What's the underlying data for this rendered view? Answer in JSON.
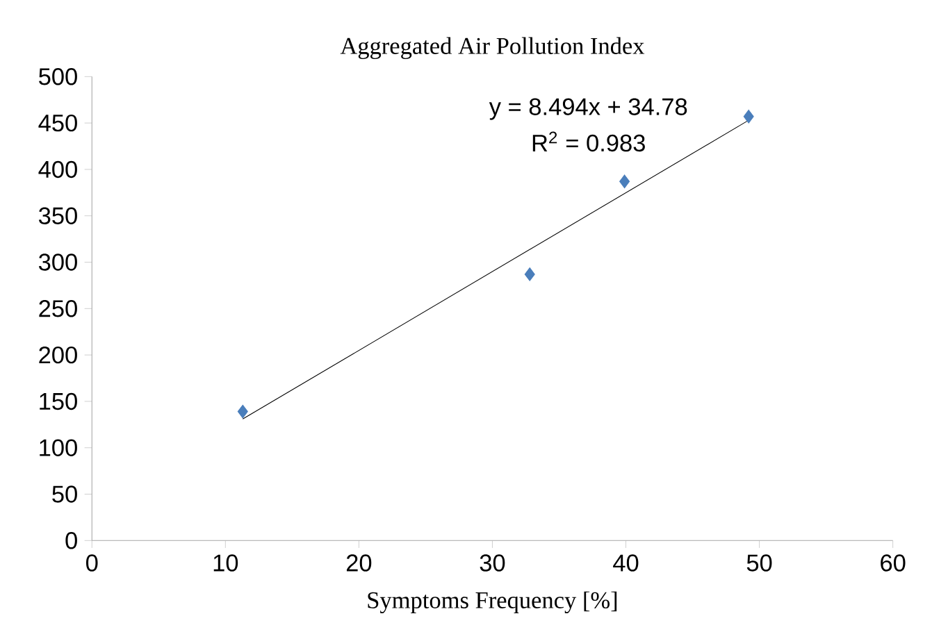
{
  "chart_data": {
    "type": "scatter",
    "title": "Aggregated Air Pollution Index",
    "xlabel": "Symptoms Frequency [%]",
    "xlim": [
      0,
      60
    ],
    "xticks": [
      0,
      10,
      20,
      30,
      40,
      50,
      60
    ],
    "ylim": [
      0,
      500
    ],
    "yticks": [
      0,
      50,
      100,
      150,
      200,
      250,
      300,
      350,
      400,
      450,
      500
    ],
    "marker": "diamond",
    "grid": false,
    "series": [
      {
        "color": "#4a7ebb",
        "x": [
          11.3,
          32.8,
          39.9,
          49.2
        ],
        "values": [
          139,
          287,
          387,
          457
        ]
      },
      {
        "type": "line",
        "marker": "none",
        "color": "#000000",
        "x": [
          11.3,
          49.2
        ],
        "values": [
          131,
          453
        ]
      }
    ],
    "annotations": [
      "y = 8.494x + 34.78",
      "R$^{2}$ = 0.983"
    ]
  }
}
